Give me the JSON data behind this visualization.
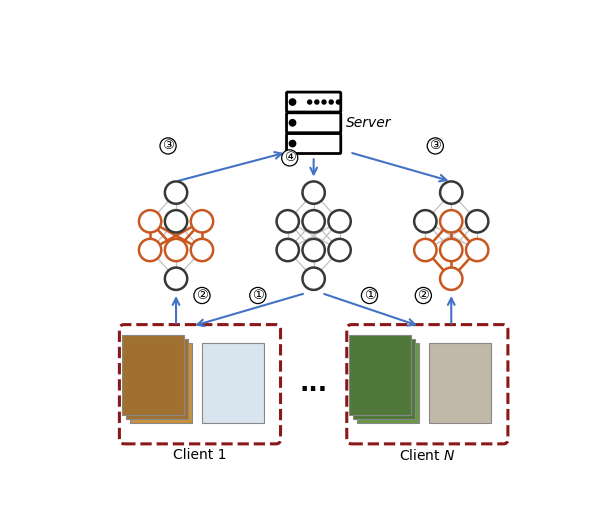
{
  "orange": "#C85820",
  "dark": "#383838",
  "light_edge": "#C0C0C0",
  "arrow_color": "#4472C4",
  "dashed_color": "#8B1818",
  "server_label": "Server",
  "client1_label": "Client 1",
  "clientN_label": "Client N",
  "bg": "#FFFFFF",
  "figsize": [
    6.12,
    5.18
  ],
  "dpi": 100
}
